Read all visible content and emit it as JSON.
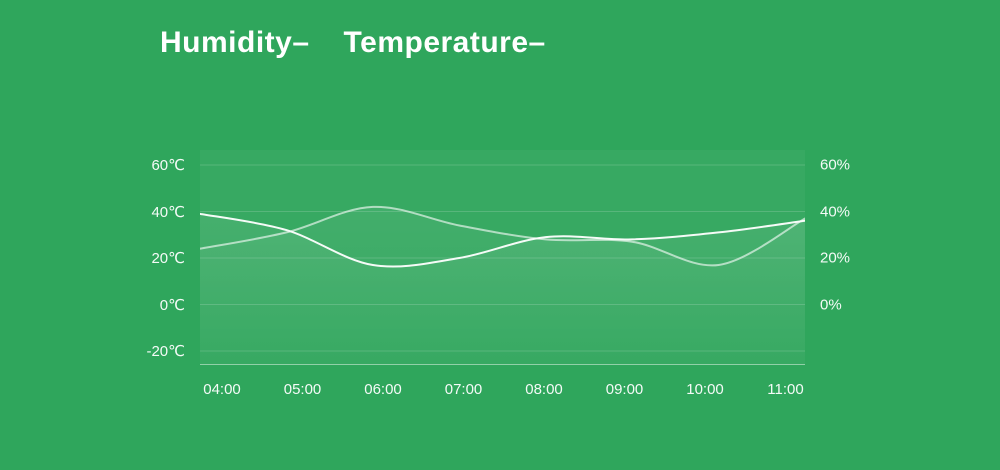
{
  "colors": {
    "background": "#2fa65c",
    "text": "#ffffff",
    "line": "#ffffff",
    "grid": "rgba(255,255,255,0.16)",
    "axis_line": "rgba(255,255,255,0.45)",
    "plot_tint": "rgba(255,255,255,0.04)"
  },
  "legend": {
    "items": [
      "Humidity–",
      "Temperature–"
    ]
  },
  "chart_data": {
    "type": "line",
    "title": "",
    "categories": [
      "04:00",
      "05:00",
      "06:00",
      "07:00",
      "08:00",
      "09:00",
      "10:00",
      "11:00"
    ],
    "series": [
      {
        "name": "Temperature",
        "unit": "℃",
        "values": [
          39,
          32,
          17,
          20,
          29,
          28,
          31,
          36
        ],
        "line_opacity": 0.95,
        "area_opacity": 0.28
      },
      {
        "name": "Humidity",
        "unit": "%",
        "values": [
          24,
          31,
          42,
          34,
          28,
          27,
          17,
          37
        ],
        "line_opacity": 0.6,
        "area_opacity": 0.22
      }
    ],
    "y_left": {
      "ticks": [
        {
          "value": 60,
          "label": "60℃"
        },
        {
          "value": 40,
          "label": "40℃"
        },
        {
          "value": 20,
          "label": "20℃"
        },
        {
          "value": 0,
          "label": "0℃"
        },
        {
          "value": -20,
          "label": "-20℃"
        }
      ]
    },
    "y_right": {
      "ticks": [
        {
          "value": 60,
          "label": "60%"
        },
        {
          "value": 40,
          "label": "40%"
        },
        {
          "value": 20,
          "label": "20%"
        },
        {
          "value": 0,
          "label": "0%"
        }
      ]
    },
    "ylim": [
      -20,
      60
    ],
    "grid": true,
    "smooth": true,
    "legend_position": "top-left"
  }
}
